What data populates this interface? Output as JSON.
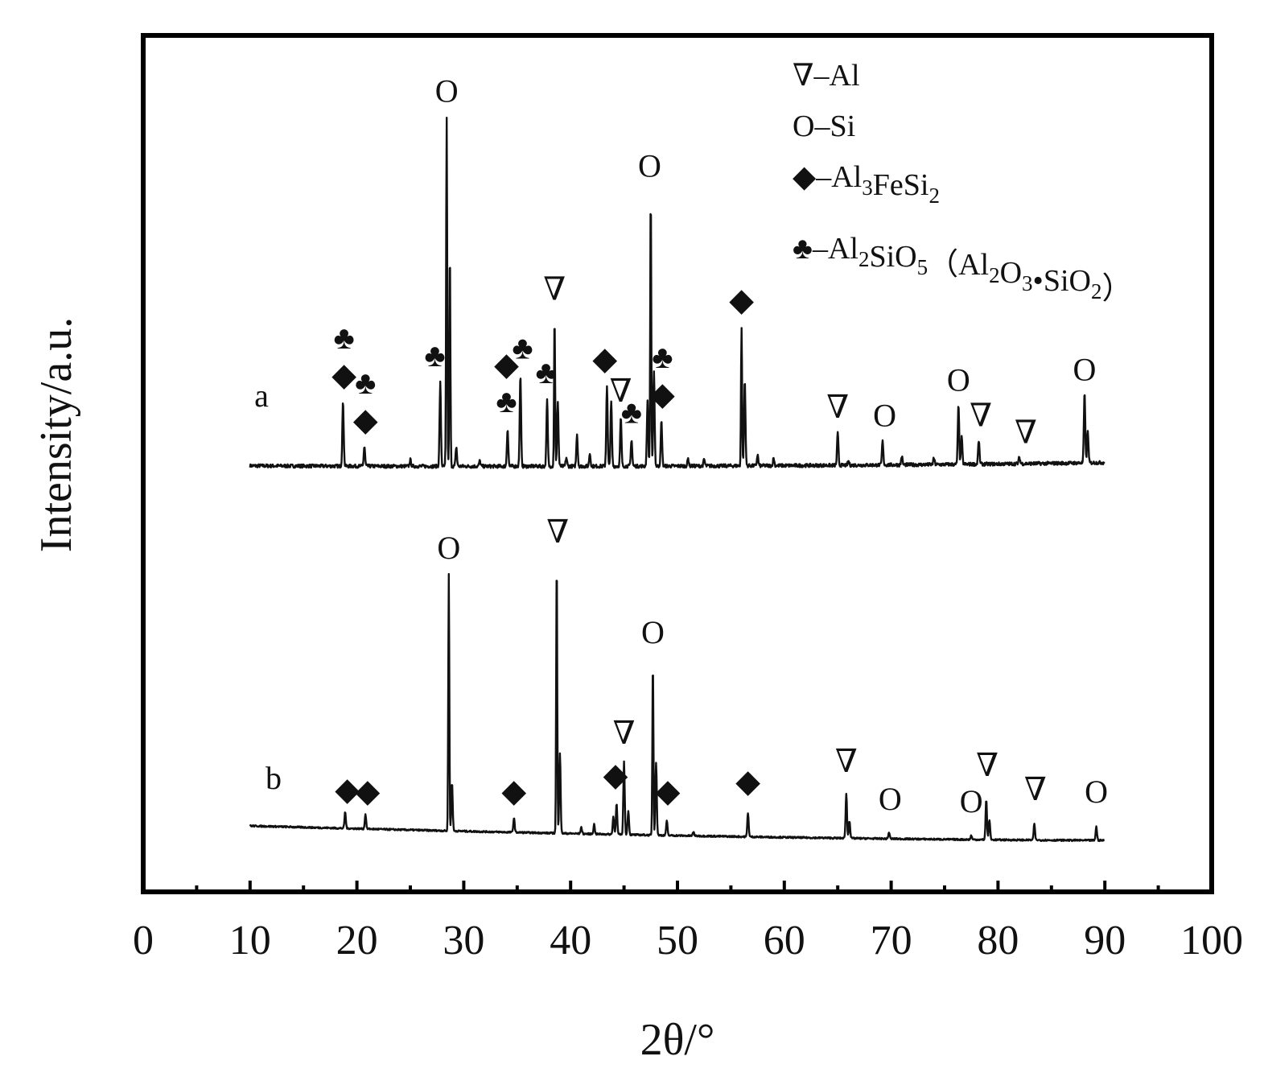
{
  "chart_data": {
    "type": "line",
    "xlabel": "2θ/°",
    "ylabel": "Intensity/a.u.",
    "xlim": [
      0,
      100
    ],
    "x_ticks": [
      0,
      10,
      20,
      30,
      40,
      50,
      60,
      70,
      80,
      90,
      100
    ],
    "legend": [
      {
        "symbol": "triangle",
        "glyph": "∇",
        "parts": [
          {
            "t": "–Al"
          }
        ]
      },
      {
        "symbol": "circle",
        "glyph": "O",
        "parts": [
          {
            "t": "–Si"
          }
        ]
      },
      {
        "symbol": "diamond",
        "glyph": "◆",
        "parts": [
          {
            "t": "–Al"
          },
          {
            "t": "3",
            "sub": true
          },
          {
            "t": "FeSi"
          },
          {
            "t": "2",
            "sub": true
          }
        ]
      },
      {
        "symbol": "club",
        "glyph": "♣",
        "parts": [
          {
            "t": "–Al"
          },
          {
            "t": "2",
            "sub": true
          },
          {
            "t": "SiO"
          },
          {
            "t": "5",
            "sub": true
          },
          {
            "t": "（Al"
          },
          {
            "t": "2",
            "sub": true
          },
          {
            "t": "O"
          },
          {
            "t": "3",
            "sub": true
          },
          {
            "t": "•SiO"
          },
          {
            "t": "2",
            "sub": true
          },
          {
            "t": "）"
          }
        ]
      }
    ],
    "series": [
      {
        "name": "a",
        "baseline_start": 10,
        "baseline_end": 13,
        "noise": 1.6,
        "peaks": [
          [
            18.7,
            60
          ],
          [
            20.7,
            18
          ],
          [
            25.0,
            6
          ],
          [
            27.8,
            78
          ],
          [
            28.4,
            325
          ],
          [
            28.7,
            200
          ],
          [
            29.3,
            18
          ],
          [
            31.5,
            5
          ],
          [
            34.1,
            35
          ],
          [
            35.3,
            85
          ],
          [
            37.8,
            62
          ],
          [
            38.5,
            140
          ],
          [
            38.8,
            60
          ],
          [
            39.6,
            8
          ],
          [
            40.6,
            30
          ],
          [
            41.8,
            12
          ],
          [
            43.4,
            75
          ],
          [
            43.8,
            60
          ],
          [
            44.7,
            45
          ],
          [
            45.7,
            25
          ],
          [
            47.2,
            60
          ],
          [
            47.5,
            255
          ],
          [
            47.8,
            90
          ],
          [
            48.5,
            42
          ],
          [
            51.0,
            7
          ],
          [
            52.5,
            6
          ],
          [
            56.0,
            130
          ],
          [
            56.3,
            80
          ],
          [
            57.5,
            10
          ],
          [
            59.0,
            7
          ],
          [
            65.0,
            30
          ],
          [
            66.0,
            4
          ],
          [
            69.2,
            22
          ],
          [
            71.0,
            8
          ],
          [
            74.0,
            6
          ],
          [
            76.3,
            55
          ],
          [
            76.6,
            25
          ],
          [
            78.2,
            22
          ],
          [
            82.0,
            6
          ],
          [
            88.1,
            65
          ],
          [
            88.4,
            30
          ]
        ],
        "markers": [
          {
            "x": 18.8,
            "label": "club",
            "row": 1
          },
          {
            "x": 18.8,
            "label": "diamond",
            "row": 0
          },
          {
            "x": 20.8,
            "label": "club",
            "row": 1
          },
          {
            "x": 20.8,
            "label": "diamond",
            "row": 0
          },
          {
            "x": 27.3,
            "label": "club",
            "row": 0
          },
          {
            "x": 28.4,
            "label": "circle",
            "row": 0
          },
          {
            "x": 34.0,
            "label": "club",
            "row": 0
          },
          {
            "x": 34.0,
            "label": "diamond",
            "row": 1
          },
          {
            "x": 35.5,
            "label": "club",
            "row": 0
          },
          {
            "x": 37.7,
            "label": "club",
            "row": 0
          },
          {
            "x": 38.5,
            "label": "triangle",
            "row": 0
          },
          {
            "x": 43.2,
            "label": "diamond",
            "row": 0
          },
          {
            "x": 44.7,
            "label": "triangle",
            "row": 0
          },
          {
            "x": 45.7,
            "label": "club",
            "row": 0
          },
          {
            "x": 47.4,
            "label": "circle",
            "row": 0
          },
          {
            "x": 48.6,
            "label": "club",
            "row": 1
          },
          {
            "x": 48.6,
            "label": "diamond",
            "row": 0
          },
          {
            "x": 56.0,
            "label": "diamond",
            "row": 0
          },
          {
            "x": 65.0,
            "label": "triangle",
            "row": 0
          },
          {
            "x": 69.4,
            "label": "circle",
            "row": 0
          },
          {
            "x": 76.3,
            "label": "circle",
            "row": 0
          },
          {
            "x": 78.4,
            "label": "triangle",
            "row": 0
          },
          {
            "x": 82.6,
            "label": "triangle",
            "row": 0
          },
          {
            "x": 88.1,
            "label": "circle",
            "row": 0
          }
        ]
      },
      {
        "name": "b",
        "baseline_start": 18,
        "baseline_end": 0,
        "noise": 1.0,
        "peaks": [
          [
            18.9,
            20
          ],
          [
            20.8,
            18
          ],
          [
            28.6,
            320
          ],
          [
            28.9,
            60
          ],
          [
            34.7,
            18
          ],
          [
            38.7,
            340
          ],
          [
            39.0,
            100
          ],
          [
            41.0,
            8
          ],
          [
            42.2,
            12
          ],
          [
            44.0,
            22
          ],
          [
            44.3,
            38
          ],
          [
            45.0,
            90
          ],
          [
            45.4,
            30
          ],
          [
            47.7,
            215
          ],
          [
            48.0,
            90
          ],
          [
            49.0,
            18
          ],
          [
            51.5,
            5
          ],
          [
            56.6,
            30
          ],
          [
            65.8,
            55
          ],
          [
            66.1,
            22
          ],
          [
            69.8,
            8
          ],
          [
            77.5,
            5
          ],
          [
            78.9,
            50
          ],
          [
            79.2,
            25
          ],
          [
            83.4,
            20
          ],
          [
            89.2,
            17
          ]
        ],
        "markers": [
          {
            "x": 19.1,
            "label": "diamond",
            "row": 0
          },
          {
            "x": 21.0,
            "label": "diamond",
            "row": 0
          },
          {
            "x": 28.6,
            "label": "circle",
            "row": 0
          },
          {
            "x": 34.7,
            "label": "diamond",
            "row": 0
          },
          {
            "x": 38.8,
            "label": "triangle",
            "row": 0
          },
          {
            "x": 44.2,
            "label": "diamond",
            "row": 0
          },
          {
            "x": 45.0,
            "label": "triangle",
            "row": 0
          },
          {
            "x": 47.7,
            "label": "circle",
            "row": 0
          },
          {
            "x": 49.1,
            "label": "diamond",
            "row": 0
          },
          {
            "x": 56.6,
            "label": "diamond",
            "row": 0
          },
          {
            "x": 65.8,
            "label": "triangle",
            "row": 0
          },
          {
            "x": 69.9,
            "label": "circle",
            "row": 0
          },
          {
            "x": 77.5,
            "label": "circle",
            "row": 0
          },
          {
            "x": 79.0,
            "label": "triangle",
            "row": 0
          },
          {
            "x": 83.5,
            "label": "triangle",
            "row": 0
          },
          {
            "x": 89.2,
            "label": "circle",
            "row": 0
          }
        ]
      }
    ]
  }
}
